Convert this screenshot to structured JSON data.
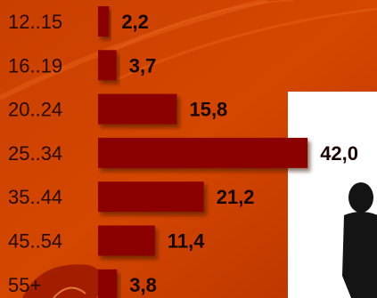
{
  "chart_data": {
    "type": "bar",
    "orientation": "horizontal",
    "categories": [
      "12..15",
      "16..19",
      "20..24",
      "25..34",
      "35..44",
      "45..54",
      "55+"
    ],
    "values": [
      2.2,
      3.7,
      15.8,
      42.0,
      21.2,
      11.4,
      3.8
    ],
    "value_labels": [
      "2,2",
      "3,7",
      "15,8",
      "42,0",
      "21,2",
      "11,4",
      "3,8"
    ],
    "title": "",
    "xlabel": "",
    "ylabel": "",
    "grid": false,
    "legend": "none"
  },
  "colors": {
    "bar": "#8b0000",
    "background_top": "#d94a00",
    "background_bottom": "#b52f00",
    "silhouette": "#141414",
    "panel": "#ffffff"
  },
  "icons": {
    "silhouette": "person-silhouette-icon"
  }
}
